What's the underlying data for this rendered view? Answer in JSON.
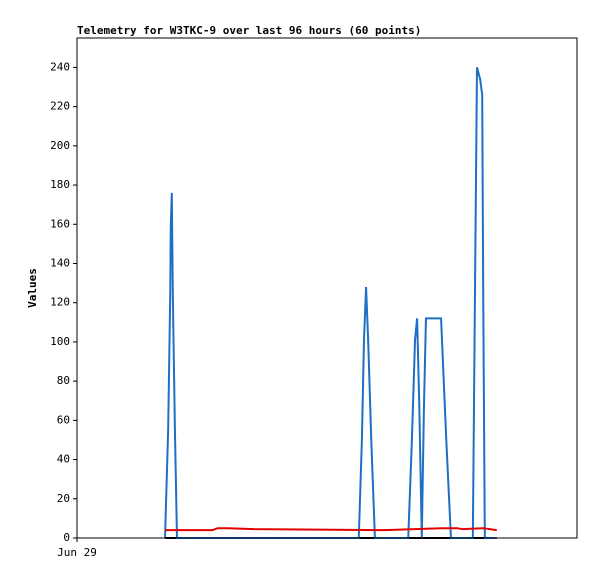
{
  "chart_data": {
    "type": "line",
    "title": "Telemetry for W3TKC-9 over last 96 hours (60 points)",
    "y_label": "Values",
    "xlim": [
      0,
      96
    ],
    "xticks": [
      {
        "value": 0,
        "label": "Jun 29"
      }
    ],
    "ylim": [
      0,
      255
    ],
    "yticks": [
      0,
      20,
      40,
      60,
      80,
      100,
      120,
      140,
      160,
      180,
      200,
      220,
      240
    ],
    "series": [
      {
        "color": "#000000",
        "x": [
          16.9,
          80.6
        ],
        "values": [
          0,
          0
        ]
      },
      {
        "color": "#1f6fc4",
        "x": [
          16.9,
          17.5,
          17.9,
          18.0,
          18.2,
          18.4,
          18.8,
          19.2,
          54.1,
          54.7,
          55.1,
          55.5,
          55.9,
          56.5,
          57.2,
          63.6,
          64.3,
          64.9,
          65.3,
          65.7,
          66.2,
          66.6,
          67.0,
          69.9,
          70.9,
          71.8,
          76.0,
          76.4,
          76.8,
          77.4,
          77.8,
          78.0,
          78.3,
          80.6
        ],
        "values": [
          0,
          55,
          124,
          158,
          176,
          124,
          55,
          0,
          0,
          50,
          101,
          128,
          101,
          50,
          0,
          0,
          50,
          101,
          112,
          70,
          0,
          65,
          112,
          112,
          50,
          0,
          0,
          122,
          240,
          234,
          226,
          122,
          0,
          0
        ]
      },
      {
        "color": "#e00000",
        "x": [
          16.9,
          26.0,
          27.0,
          29.0,
          34.0,
          59.0,
          70.0,
          73.0,
          74.0,
          78.0,
          80.6
        ],
        "values": [
          4,
          4,
          5,
          5,
          4.5,
          4,
          5,
          5,
          4.5,
          5,
          4
        ]
      }
    ]
  }
}
